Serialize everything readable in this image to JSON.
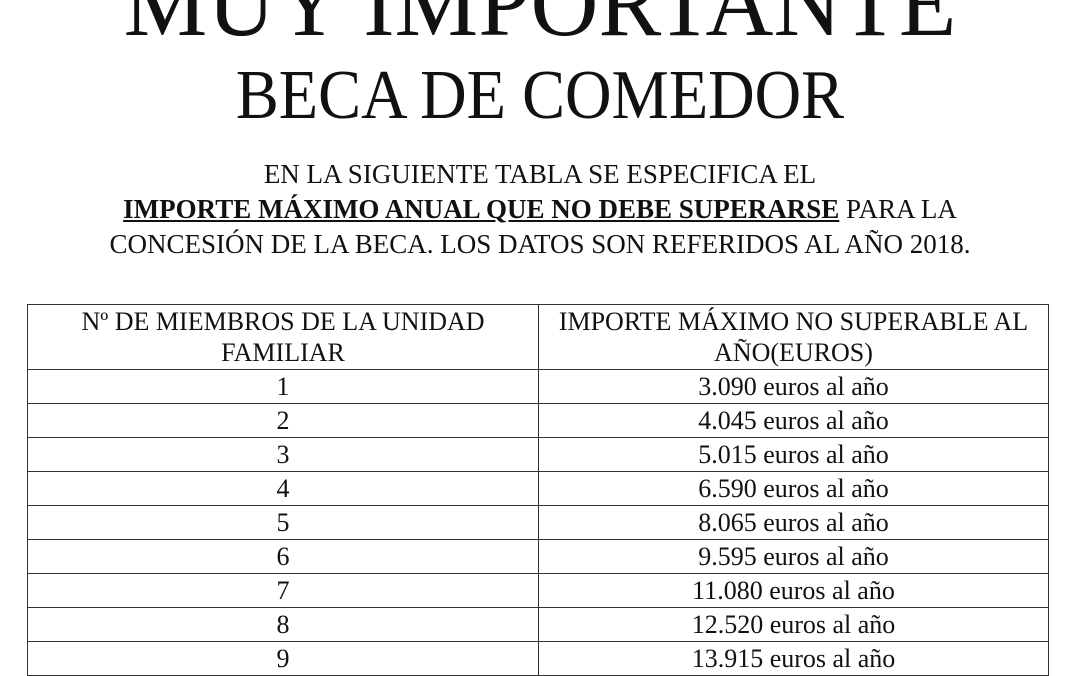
{
  "title": "MUY IMPORTANTE",
  "subtitle": "BECA DE COMEDOR",
  "intro": {
    "line1": "EN LA SIGUIENTE TABLA SE ESPECIFICA EL",
    "line2_emphasis": "IMPORTE MÁXIMO ANUAL QUE NO DEBE SUPERARSE",
    "line2_rest": " PARA LA",
    "line3": "CONCESIÓN DE LA BECA. LOS DATOS SON REFERIDOS AL AÑO 2018."
  },
  "table": {
    "headers": [
      "Nº DE MIEMBROS DE LA UNIDAD FAMILIAR",
      "IMPORTE MÁXIMO NO SUPERABLE AL AÑO(EUROS)"
    ],
    "rows": [
      [
        "1",
        "3.090 euros al año"
      ],
      [
        "2",
        "4.045 euros al año"
      ],
      [
        "3",
        "5.015 euros al año"
      ],
      [
        "4",
        "6.590 euros al año"
      ],
      [
        "5",
        "8.065 euros al año"
      ],
      [
        "6",
        "9.595 euros al año"
      ],
      [
        "7",
        "11.080 euros al año"
      ],
      [
        "8",
        "12.520 euros al año"
      ],
      [
        "9",
        "13.915 euros al año"
      ]
    ]
  }
}
